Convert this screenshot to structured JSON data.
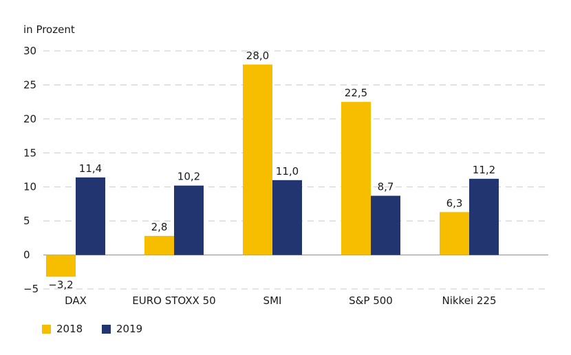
{
  "chart_data": {
    "type": "bar",
    "unit_label": "in Prozent",
    "categories": [
      "DAX",
      "EURO STOXX 50",
      "SMI",
      "S&P 500",
      "Nikkei 225"
    ],
    "series": [
      {
        "name": "2018",
        "color": "#F7BE00",
        "values": [
          -3.2,
          2.8,
          28.0,
          22.5,
          6.3
        ],
        "labels": [
          "−3,2",
          "2,8",
          "28,0",
          "22,5",
          "6,3"
        ]
      },
      {
        "name": "2019",
        "color": "#233571",
        "values": [
          11.4,
          10.2,
          11.0,
          8.7,
          11.2
        ],
        "labels": [
          "11,4",
          "10,2",
          "11,0",
          "8,7",
          "11,2"
        ]
      }
    ],
    "ylim": [
      -5,
      30
    ],
    "yticks": [
      30,
      25,
      20,
      15,
      10,
      5,
      0,
      -5
    ],
    "ytick_labels": [
      "30",
      "25",
      "20",
      "15",
      "10",
      "5",
      "0",
      "−5"
    ],
    "grid": true,
    "legend_position": "bottom-left"
  }
}
